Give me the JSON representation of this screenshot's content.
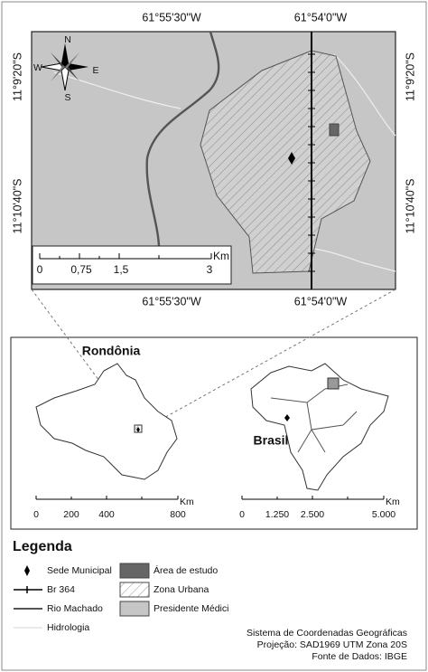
{
  "main_map": {
    "top_labels": [
      "61°55'30\"W",
      "61°54'0\"W"
    ],
    "bottom_labels": [
      "61°55'30\"W",
      "61°54'0\"W"
    ],
    "left_labels": [
      "11°9'20\"S",
      "11°10'40\"S"
    ],
    "right_labels": [
      "11°9'20\"S",
      "11°10'40\"S"
    ],
    "compass": {
      "north": "N",
      "south": "S",
      "west": "W",
      "east": "E"
    },
    "scale": {
      "unit": "Km",
      "ticks": [
        "0",
        "0,75",
        "1,5",
        "3"
      ]
    }
  },
  "inset_rondonia": {
    "title": "Rondônia",
    "scale": {
      "unit": "Km",
      "ticks": [
        "0",
        "200",
        "400",
        "800"
      ]
    }
  },
  "inset_brasil": {
    "title": "Brasil",
    "scale": {
      "unit": "Km",
      "ticks": [
        "0",
        "1.250",
        "2.500",
        "5.000"
      ]
    }
  },
  "legend": {
    "title": "Legenda",
    "items": [
      "Sede Municipal",
      "Br 364",
      "Rio Machado",
      "Hidrologia",
      "Área de estudo",
      "Zona Urbana",
      "Presidente Médici"
    ]
  },
  "footer": [
    "Sistema de Coordenadas Geográficas",
    "Projeção: SAD1969 UTM Zona 20S",
    "Fonte de Dados: IBGE"
  ]
}
